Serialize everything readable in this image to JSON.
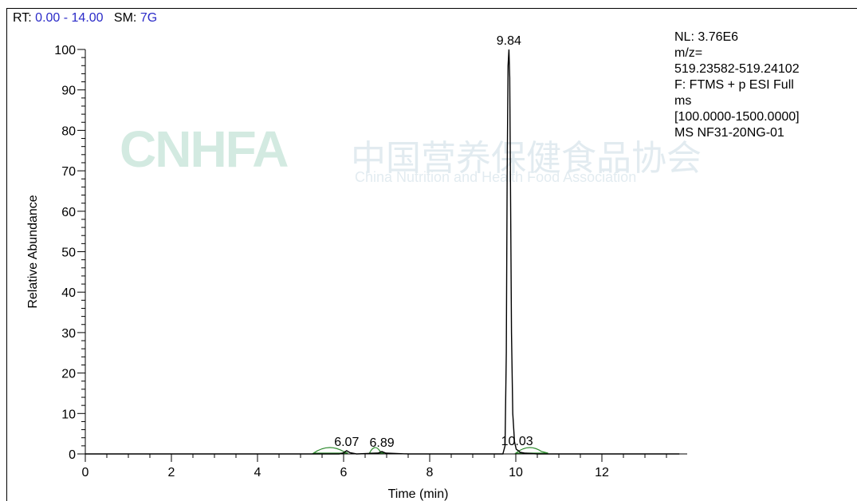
{
  "header": {
    "rt_label": "RT:",
    "rt_value": "0.00 - 14.00",
    "sm_label": "SM:",
    "sm_value": "7G"
  },
  "info": {
    "lines": [
      "NL: 3.76E6",
      "m/z=",
      "519.23582-519.24102",
      "F: FTMS + p ESI Full",
      "ms",
      "[100.0000-1500.0000]",
      "MS NF31-20NG-01"
    ]
  },
  "watermark": {
    "logo_text": "CNHFA",
    "chinese_text": "中国营养保健食品协会",
    "english_text": "China Nutrition and Health Food Association"
  },
  "colors": {
    "trace": "#000000",
    "peak_fill": "#2e8b2e",
    "header_value": "#2b2bc8"
  },
  "chart_data": {
    "type": "line",
    "title": "",
    "xlabel": "Time (min)",
    "ylabel": "Relative Abundance",
    "xlim": [
      0,
      14
    ],
    "ylim": [
      0,
      100
    ],
    "x_ticks": [
      0,
      2,
      4,
      6,
      8,
      10,
      12
    ],
    "y_ticks": [
      0,
      10,
      20,
      30,
      40,
      50,
      60,
      70,
      80,
      90,
      100
    ],
    "x_minor_step": 0.5,
    "y_minor_step": 2,
    "grid": false,
    "series": [
      {
        "x": [
          0,
          5.9,
          6.0,
          6.07,
          6.15,
          6.3,
          6.8,
          6.89,
          6.98,
          7.5,
          9.7,
          9.75,
          9.78,
          9.8,
          9.82,
          9.84,
          9.86,
          9.88,
          9.9,
          9.93,
          9.97,
          10.01,
          10.03,
          10.06,
          10.1,
          10.2,
          10.5,
          11,
          13.8
        ],
        "y": [
          0,
          0,
          0.3,
          0.8,
          0.3,
          0,
          0.2,
          0.6,
          0.2,
          0,
          0,
          2,
          25,
          70,
          96,
          100,
          93,
          62,
          30,
          10,
          3,
          1.2,
          1,
          0.8,
          0.4,
          0.2,
          0,
          0,
          0
        ]
      }
    ],
    "peak_labels": [
      {
        "x": 9.84,
        "y": 100,
        "text": "9.84"
      },
      {
        "x": 6.07,
        "y": 0.8,
        "text": "6.07"
      },
      {
        "x": 6.89,
        "y": 0.6,
        "text": "6.89"
      },
      {
        "x": 10.03,
        "y": 1,
        "text": "10.03"
      }
    ],
    "small_peaks": [
      {
        "x0": 5.3,
        "x1": 6.0,
        "x2": 6.1,
        "label": "6.07"
      },
      {
        "x0": 6.6,
        "x1": 6.85,
        "x2": 6.95,
        "label": "6.89"
      },
      {
        "x0": 10.0,
        "x1": 10.6,
        "x2": 10.75,
        "label": "10.03"
      }
    ]
  }
}
